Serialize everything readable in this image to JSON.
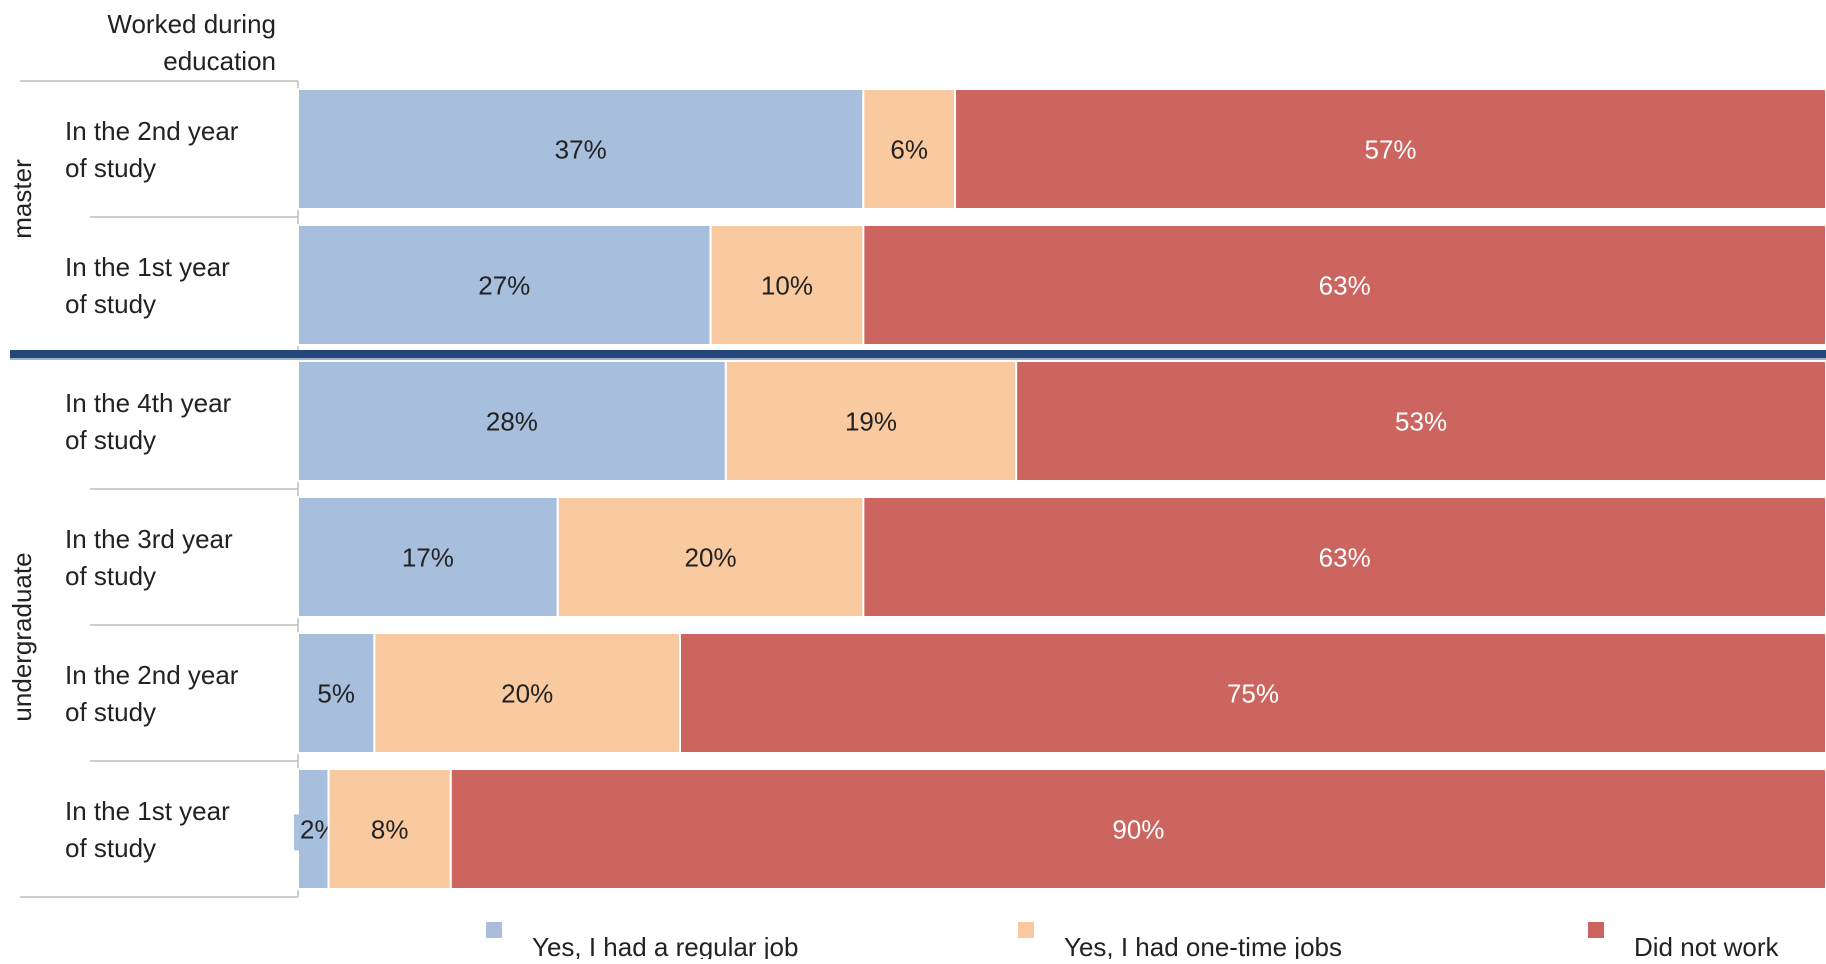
{
  "chart_data": {
    "type": "bar",
    "orientation": "horizontal",
    "stacked": true,
    "normalized_percent": true,
    "header": "Worked during education",
    "groups": [
      {
        "name": "master",
        "rows": [
          "In the 2nd year of study",
          "In the 1st year of study"
        ]
      },
      {
        "name": "undergraduate",
        "rows": [
          "In the 4th year of study",
          "In the 3rd year of study",
          "In the 2nd year of study",
          "In the 1st year of study"
        ]
      }
    ],
    "categories": [
      "In the 2nd year of study",
      "In the 1st year of study",
      "In the 4th year of study",
      "In the 3rd year of study",
      "In the 2nd year of study",
      "In the 1st year of study"
    ],
    "category_lines": [
      [
        "In the 2nd year",
        "of study"
      ],
      [
        "In the 1st year",
        "of study"
      ],
      [
        "In the 4th year",
        "of study"
      ],
      [
        "In the 3rd year",
        "of study"
      ],
      [
        "In the 2nd year",
        "of study"
      ],
      [
        "In the 1st year",
        "of study"
      ]
    ],
    "series": [
      {
        "name": "Yes, I had a regular job",
        "color": "#a7bfdd",
        "label_color": "#222222",
        "values": [
          37,
          27,
          28,
          17,
          5,
          2
        ]
      },
      {
        "name": "Yes, I had one-time jobs",
        "color": "#f9c9a0",
        "label_color": "#222222",
        "values": [
          6,
          10,
          19,
          20,
          20,
          8
        ]
      },
      {
        "name": "Did not work",
        "color": "#cc655f",
        "label_color": "#ffffff",
        "values": [
          57,
          63,
          53,
          63,
          75,
          90
        ]
      }
    ],
    "xlim": [
      0,
      100
    ],
    "value_format": "{v}%",
    "legend_position": "bottom",
    "divider_color": "#24467a",
    "grid": false
  }
}
